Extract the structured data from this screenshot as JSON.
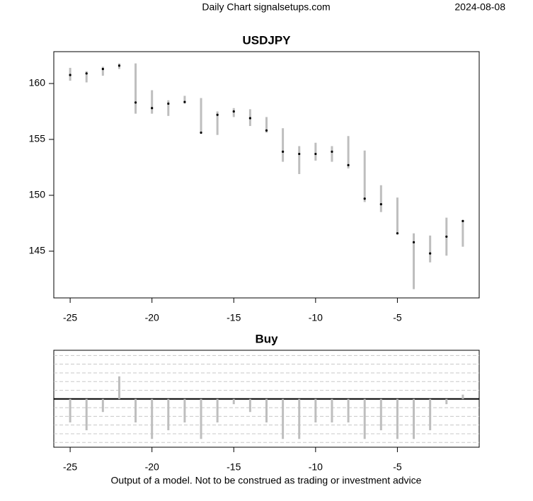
{
  "header": {
    "title": "Daily Chart signalsetups.com",
    "date": "2024-08-08"
  },
  "chart_data": [
    {
      "type": "ohlc",
      "title": "USDJPY",
      "x": [
        -25,
        -24,
        -23,
        -22,
        -21,
        -20,
        -19,
        -18,
        -17,
        -16,
        -15,
        -14,
        -13,
        -12,
        -11,
        -10,
        -9,
        -8,
        -7,
        -6,
        -5,
        -4,
        -3,
        -2,
        -1
      ],
      "high": [
        161.4,
        161.1,
        161.5,
        161.8,
        161.8,
        159.4,
        158.5,
        158.9,
        158.7,
        157.5,
        157.8,
        157.7,
        157.0,
        156.0,
        154.4,
        154.7,
        154.4,
        155.3,
        154.0,
        150.9,
        149.8,
        146.6,
        146.4,
        148.0,
        147.8
      ],
      "low": [
        160.25,
        160.1,
        160.7,
        161.3,
        157.3,
        157.3,
        157.1,
        158.2,
        155.6,
        155.4,
        157.0,
        156.2,
        155.6,
        153.0,
        151.9,
        153.1,
        153.0,
        152.4,
        149.4,
        148.5,
        146.5,
        141.6,
        144.0,
        144.6,
        145.4
      ],
      "close": [
        160.76,
        160.9,
        161.3,
        161.6,
        158.3,
        157.8,
        158.2,
        158.35,
        155.6,
        157.2,
        157.5,
        156.9,
        155.8,
        153.9,
        153.7,
        153.7,
        153.9,
        152.7,
        149.7,
        149.2,
        146.6,
        145.8,
        144.8,
        146.3,
        147.7
      ],
      "color": "#bebebe",
      "marker_color": "#000000",
      "xlim": [
        -26,
        0
      ],
      "ylim": [
        140.82,
        162.85
      ],
      "xticks": [
        -25,
        -20,
        -15,
        -10,
        -5
      ],
      "yticks": [
        145,
        150,
        155,
        160
      ]
    },
    {
      "type": "bar",
      "title": "Buy",
      "x": [
        -25,
        -24,
        -23,
        -22,
        -21,
        -20,
        -19,
        -18,
        -17,
        -16,
        -15,
        -14,
        -13,
        -12,
        -11,
        -10,
        -9,
        -8,
        -7,
        -6,
        -5,
        -4,
        -3,
        -2,
        -1
      ],
      "values": [
        -2.7,
        -3.6,
        -1.5,
        2.6,
        -2.7,
        -4.6,
        -3.6,
        -2.7,
        -4.6,
        -2.7,
        -0.6,
        -1.5,
        -2.7,
        -4.6,
        -4.6,
        -2.7,
        -2.7,
        -2.7,
        -4.6,
        -3.6,
        -4.6,
        -4.6,
        -3.6,
        -0.6,
        0.5
      ],
      "color": "#bebebe",
      "xlim": [
        -26,
        0
      ],
      "ylim": [
        -5.55,
        5.6
      ],
      "xticks": [
        -25,
        -20,
        -15,
        -10,
        -5
      ],
      "ygrid": [
        -5,
        -4,
        -3,
        -2,
        -1,
        1,
        2,
        3,
        4,
        5
      ],
      "grid": true
    }
  ],
  "footer": "Output of a model. Not to be construed as trading or investment advice"
}
